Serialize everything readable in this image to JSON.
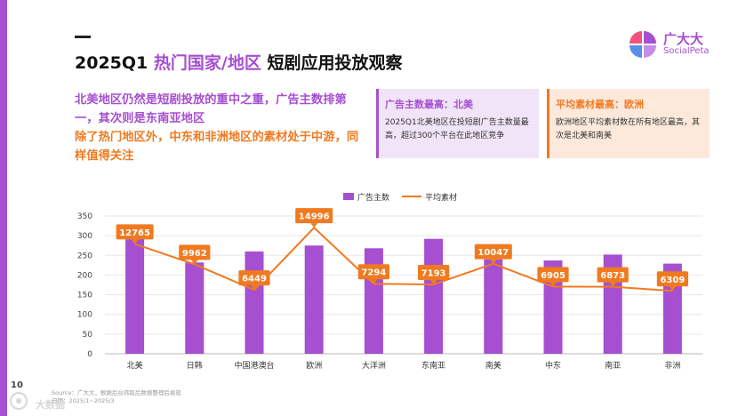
{
  "page": {
    "number": "10"
  },
  "header": {
    "title_year": "2025Q1",
    "title_highlight": "热门国家/地区",
    "title_rest": "短剧应用投放观察"
  },
  "logo": {
    "name": "广大大",
    "sub": "SocialPeta"
  },
  "summary": {
    "line1": "北美地区仍然是短剧投放的重中之重，广告主数排第一，其次则是东南亚地区",
    "line2": "除了热门地区外，中东和非洲地区的素材处于中游，同样值得关注"
  },
  "cards": [
    {
      "title": "广告主数最高：北美",
      "text": "2025Q1北美地区在投短剧广告主数量最高，超过300个平台在此地区竞争"
    },
    {
      "title": "平均素材最高：欧洲",
      "text": "欧洲地区平均素材数在所有地区最高，其次是北美和南美"
    }
  ],
  "footer": {
    "source": "Source：广大大，根据后台筛取后数据整理后易现",
    "period": "日期：2025/1~2025/3"
  },
  "colors": {
    "bar": "#a64fd0",
    "line": "#f07a20",
    "accent_purple": "#a64fd0",
    "accent_orange": "#f07a20"
  },
  "chart_data": {
    "type": "bar",
    "categories": [
      "北美",
      "日韩",
      "中国港澳台",
      "欧洲",
      "大洋洲",
      "东南亚",
      "南美",
      "中东",
      "南亚",
      "非洲"
    ],
    "series": [
      {
        "name": "广告主数",
        "type": "bar",
        "values": [
          315,
          232,
          260,
          275,
          268,
          292,
          240,
          237,
          252,
          229
        ]
      },
      {
        "name": "平均素材",
        "type": "line",
        "values": [
          12765,
          9962,
          6449,
          14996,
          7294,
          7193,
          10047,
          6905,
          6873,
          6309
        ]
      }
    ],
    "ylim": [
      0,
      350
    ],
    "yticks": [
      0,
      50,
      100,
      150,
      200,
      250,
      300,
      350
    ],
    "legend_position": "top",
    "grid": true
  }
}
